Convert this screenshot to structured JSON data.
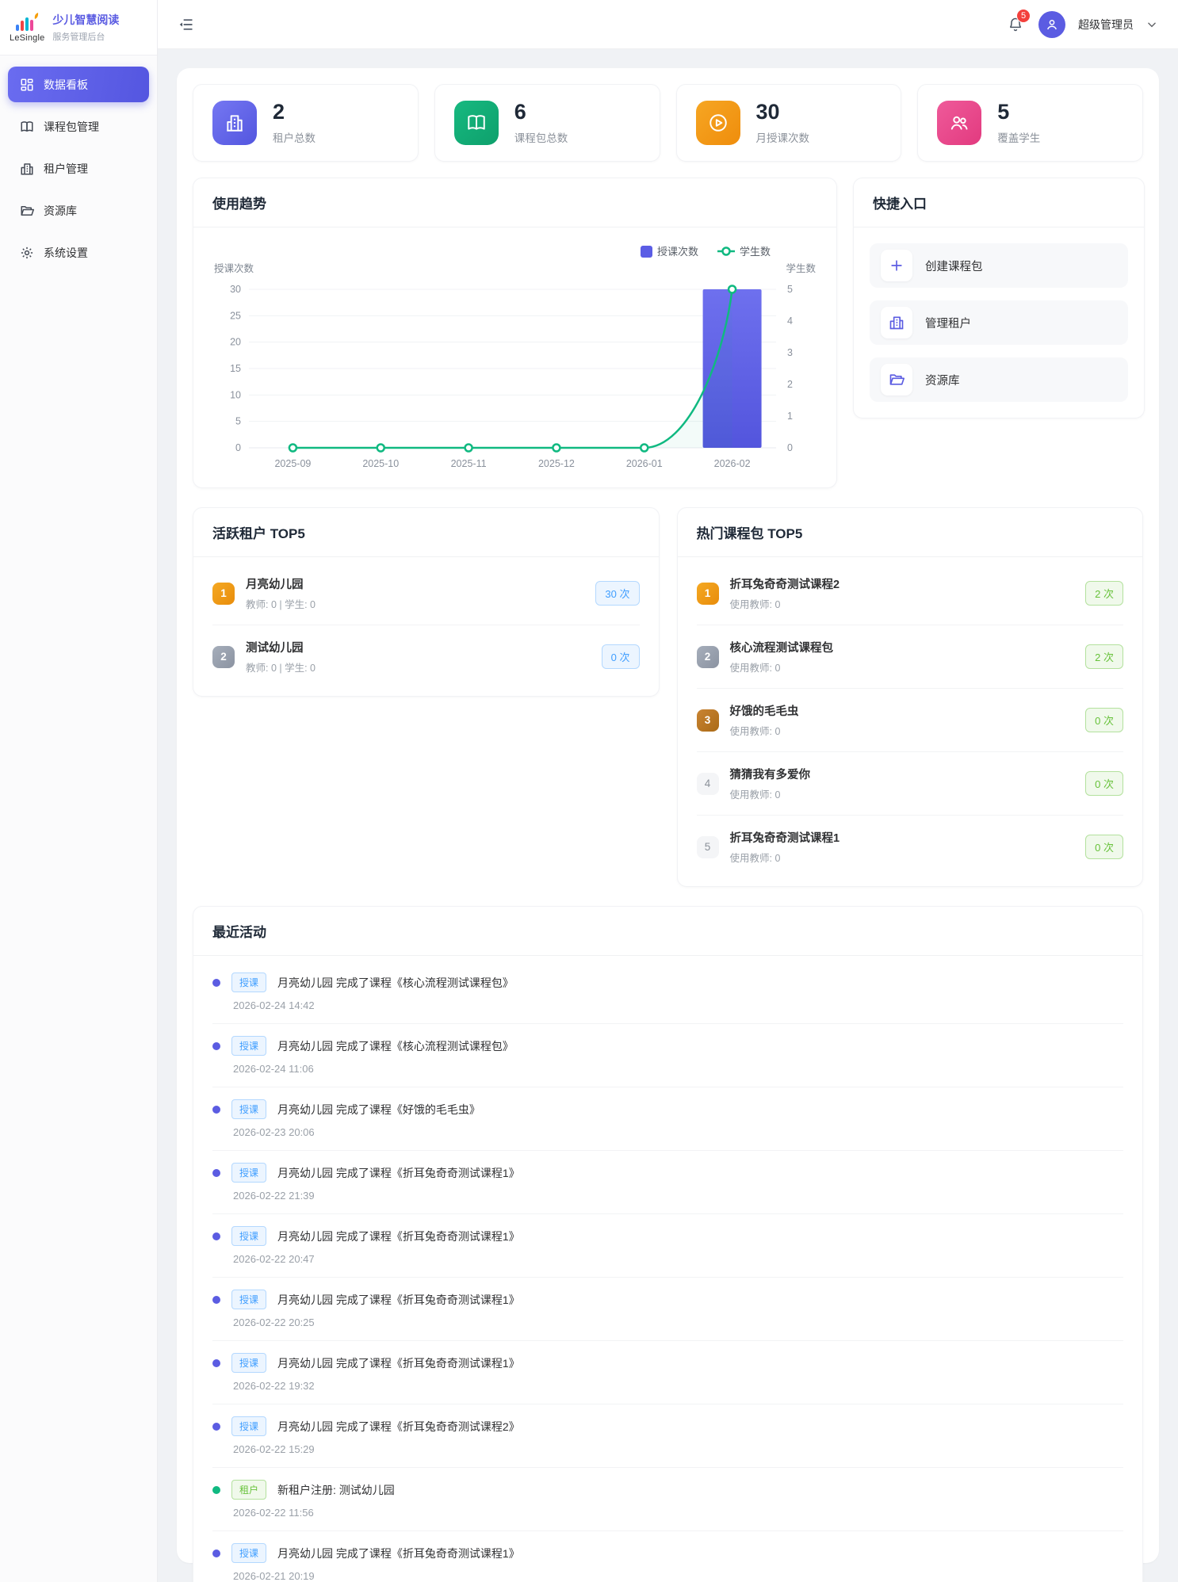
{
  "app": {
    "logo_text": "LeSingle",
    "title": "少儿智慧阅读",
    "subtitle": "服务管理后台"
  },
  "header": {
    "notification_count": "5",
    "user_name": "超级管理员"
  },
  "sidebar": {
    "items": [
      {
        "label": "数据看板",
        "icon": "dashboard-icon",
        "active": true
      },
      {
        "label": "课程包管理",
        "icon": "book-icon",
        "active": false
      },
      {
        "label": "租户管理",
        "icon": "building-icon",
        "active": false
      },
      {
        "label": "资源库",
        "icon": "folder-icon",
        "active": false
      },
      {
        "label": "系统设置",
        "icon": "gear-icon",
        "active": false
      }
    ]
  },
  "stats": [
    {
      "value": "2",
      "label": "租户总数",
      "icon": "building-icon",
      "color": "#5b5ce2"
    },
    {
      "value": "6",
      "label": "课程包总数",
      "icon": "book-icon",
      "color": "#10b981"
    },
    {
      "value": "30",
      "label": "月授课次数",
      "icon": "play-icon",
      "color": "#f59e0b"
    },
    {
      "value": "5",
      "label": "覆盖学生",
      "icon": "users-icon",
      "color": "#e94887"
    }
  ],
  "trend": {
    "title": "使用趋势"
  },
  "chart_data": {
    "type": "bar",
    "title": "使用趋势",
    "categories": [
      "2025-09",
      "2025-10",
      "2025-11",
      "2025-12",
      "2026-01",
      "2026-02"
    ],
    "series": [
      {
        "name": "授课次数",
        "type": "bar",
        "axis": "left",
        "color": "#5b5de5",
        "values": [
          0,
          0,
          0,
          0,
          0,
          30
        ]
      },
      {
        "name": "学生数",
        "type": "line",
        "axis": "right",
        "color": "#10b981",
        "values": [
          0,
          0,
          0,
          0,
          0,
          5
        ]
      }
    ],
    "left_axis": {
      "label": "授课次数",
      "min": 0,
      "max": 30,
      "ticks": [
        30,
        25,
        20,
        15,
        10,
        5,
        0
      ]
    },
    "right_axis": {
      "label": "学生数",
      "min": 0,
      "max": 5,
      "ticks": [
        5,
        4,
        3,
        2,
        1,
        0
      ]
    },
    "legend_position": "top-right",
    "grid": "horizontal"
  },
  "quick": {
    "title": "快捷入口",
    "items": [
      {
        "label": "创建课程包",
        "icon": "plus-icon"
      },
      {
        "label": "管理租户",
        "icon": "building-icon"
      },
      {
        "label": "资源库",
        "icon": "folder-icon"
      }
    ]
  },
  "active_tenants": {
    "title": "活跃租户 TOP5",
    "items": [
      {
        "rank": "1",
        "name": "月亮幼儿园",
        "meta": "教师: 0 | 学生: 0",
        "count": "30 次"
      },
      {
        "rank": "2",
        "name": "测试幼儿园",
        "meta": "教师: 0 | 学生: 0",
        "count": "0 次"
      }
    ]
  },
  "hot_packages": {
    "title": "热门课程包 TOP5",
    "items": [
      {
        "rank": "1",
        "name": "折耳兔奇奇测试课程2",
        "meta": "使用教师: 0",
        "count": "2 次"
      },
      {
        "rank": "2",
        "name": "核心流程测试课程包",
        "meta": "使用教师: 0",
        "count": "2 次"
      },
      {
        "rank": "3",
        "name": "好饿的毛毛虫",
        "meta": "使用教师: 0",
        "count": "0 次"
      },
      {
        "rank": "4",
        "name": "猜猜我有多爱你",
        "meta": "使用教师: 0",
        "count": "0 次"
      },
      {
        "rank": "5",
        "name": "折耳兔奇奇测试课程1",
        "meta": "使用教师: 0",
        "count": "0 次"
      }
    ]
  },
  "activities": {
    "title": "最近活动",
    "items": [
      {
        "kind": "teach",
        "type": "授课",
        "text": "月亮幼儿园 完成了课程《核心流程测试课程包》",
        "time": "2026-02-24 14:42"
      },
      {
        "kind": "teach",
        "type": "授课",
        "text": "月亮幼儿园 完成了课程《核心流程测试课程包》",
        "time": "2026-02-24 11:06"
      },
      {
        "kind": "teach",
        "type": "授课",
        "text": "月亮幼儿园 完成了课程《好饿的毛毛虫》",
        "time": "2026-02-23 20:06"
      },
      {
        "kind": "teach",
        "type": "授课",
        "text": "月亮幼儿园 完成了课程《折耳兔奇奇测试课程1》",
        "time": "2026-02-22 21:39"
      },
      {
        "kind": "teach",
        "type": "授课",
        "text": "月亮幼儿园 完成了课程《折耳兔奇奇测试课程1》",
        "time": "2026-02-22 20:47"
      },
      {
        "kind": "teach",
        "type": "授课",
        "text": "月亮幼儿园 完成了课程《折耳兔奇奇测试课程1》",
        "time": "2026-02-22 20:25"
      },
      {
        "kind": "teach",
        "type": "授课",
        "text": "月亮幼儿园 完成了课程《折耳兔奇奇测试课程1》",
        "time": "2026-02-22 19:32"
      },
      {
        "kind": "teach",
        "type": "授课",
        "text": "月亮幼儿园 完成了课程《折耳兔奇奇测试课程2》",
        "time": "2026-02-22 15:29"
      },
      {
        "kind": "tenant",
        "type": "租户",
        "text": "新租户注册: 测试幼儿园",
        "time": "2026-02-22 11:56"
      },
      {
        "kind": "teach",
        "type": "授课",
        "text": "月亮幼儿园 完成了课程《折耳兔奇奇测试课程1》",
        "time": "2026-02-21 20:19"
      }
    ]
  }
}
